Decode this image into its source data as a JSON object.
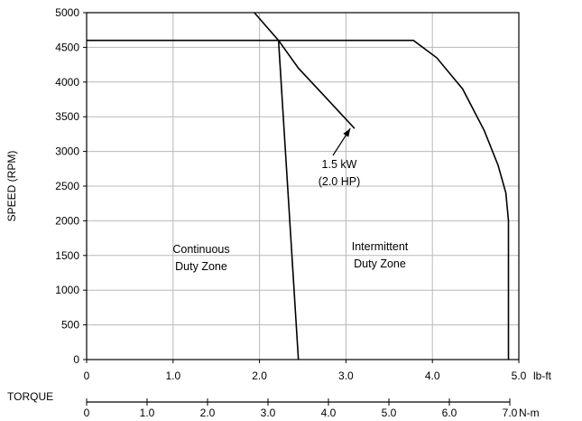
{
  "chart_data": {
    "type": "line",
    "ylabel": "SPEED (RPM)",
    "xlabel": "TORQUE",
    "grid": true,
    "y_axis": {
      "ylim": [
        0,
        5000
      ],
      "ticks": [
        0,
        500,
        1000,
        1500,
        2000,
        2500,
        3000,
        3500,
        4000,
        4500,
        5000
      ],
      "tick_labels": [
        "0",
        "500",
        "1000",
        "1500",
        "2000",
        "2500",
        "3000",
        "3500",
        "4000",
        "4500",
        "5000"
      ]
    },
    "x_axis_lbft": {
      "unit": "lb-ft",
      "xlim": [
        0,
        5.0
      ],
      "ticks": [
        0,
        1.0,
        2.0,
        3.0,
        4.0,
        5.0
      ],
      "tick_labels": [
        "0",
        "1.0",
        "2.0",
        "3.0",
        "4.0",
        "5.0"
      ]
    },
    "x_axis_nm": {
      "unit": "N-m",
      "xlim": [
        0,
        7.0
      ],
      "ticks": [
        0,
        1.0,
        2.0,
        3.0,
        4.0,
        5.0,
        6.0,
        7.0
      ],
      "tick_labels": [
        "0",
        "1.0",
        "2.0",
        "3.0",
        "4.0",
        "5.0",
        "6.0",
        "7.0"
      ]
    },
    "series": [
      {
        "x": [
          2.45,
          2.22
        ],
        "y": [
          0,
          4600
        ]
      },
      {
        "x": [
          0,
          3.78,
          4.05,
          4.35,
          4.6,
          4.76,
          4.85,
          4.88,
          4.88
        ],
        "y": [
          4600,
          4600,
          4350,
          3900,
          3300,
          2800,
          2400,
          2000,
          0
        ]
      },
      {
        "x": [
          1.94,
          2.22,
          2.45,
          2.75,
          3.1
        ],
        "y": [
          5000,
          4600,
          4200,
          3800,
          3330
        ]
      }
    ],
    "annotations": [
      {
        "text_lines": [
          "1.5 kW",
          "(2.0 HP)"
        ],
        "arrow_to": [
          3.05,
          3330
        ]
      },
      {
        "text_lines": [
          "Continuous",
          "Duty Zone"
        ]
      },
      {
        "text_lines": [
          "Intermittent",
          "Duty Zone"
        ]
      }
    ]
  }
}
